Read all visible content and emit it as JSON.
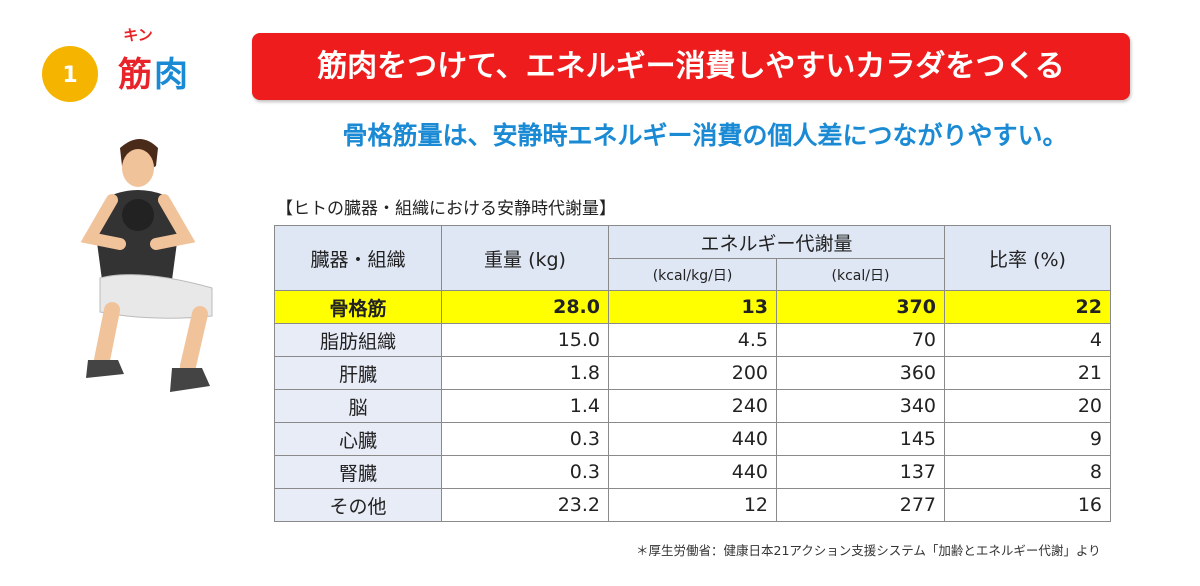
{
  "header": {
    "number": "1",
    "ruby": "キン",
    "title": [
      "筋",
      "肉"
    ]
  },
  "banner": "筋肉をつけて、エネルギー消費しやすいカラダをつくる",
  "subtitle": "骨格筋量は、安静時エネルギー消費の個人差につながりやすい。",
  "table": {
    "caption": "【ヒトの臓器・組織における安静時代謝量】",
    "headers": {
      "organ": "臓器・組織",
      "weight": "重量 (kg)",
      "energy": "エネルギー代謝量",
      "per_kg": "(kcal/kg/日)",
      "per_day": "(kcal/日)",
      "ratio": "比率 (%)"
    },
    "rows": [
      [
        "骨格筋",
        "28.0",
        "13",
        "370",
        "22"
      ],
      [
        "脂肪組織",
        "15.0",
        "4.5",
        "70",
        "4"
      ],
      [
        "肝臓",
        "1.8",
        "200",
        "360",
        "21"
      ],
      [
        "脳",
        "1.4",
        "240",
        "340",
        "20"
      ],
      [
        "心臓",
        "0.3",
        "440",
        "145",
        "9"
      ],
      [
        "腎臓",
        "0.3",
        "440",
        "137",
        "8"
      ],
      [
        "その他",
        "23.2",
        "12",
        "277",
        "16"
      ]
    ]
  },
  "source": "＊厚生労働省：健康日本21アクション支援システム「加齢とエネルギー代謝」より"
}
